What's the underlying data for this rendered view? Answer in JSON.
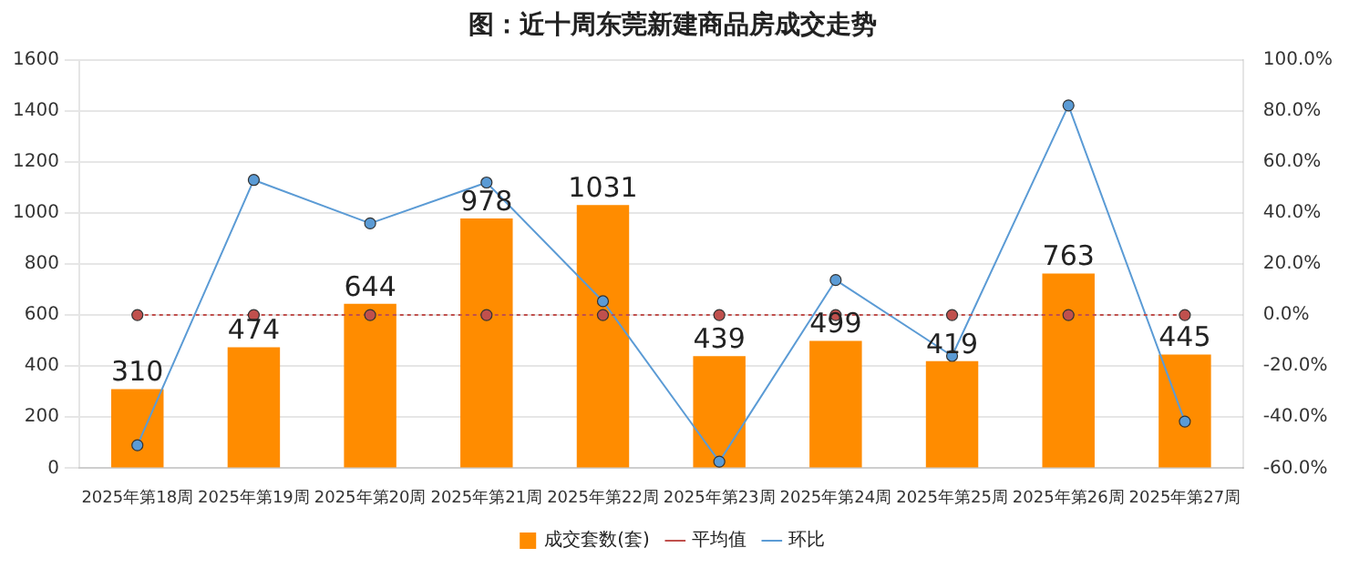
{
  "chart_data": {
    "type": "bar",
    "title": "图：近十周东莞新建商品房成交走势",
    "categories": [
      "2025年第18周",
      "2025年第19周",
      "2025年第20周",
      "2025年第21周",
      "2025年第22周",
      "2025年第23周",
      "2025年第24周",
      "2025年第25周",
      "2025年第26周",
      "2025年第27周"
    ],
    "series": [
      {
        "name": "成交套数(套)",
        "color": "#ff8c00",
        "values": [
          310,
          474,
          644,
          978,
          1031,
          439,
          499,
          419,
          763,
          445
        ],
        "value_labels": [
          "310",
          "474",
          "644",
          "978",
          "1031",
          "439",
          "499",
          "419",
          "763",
          "445"
        ]
      },
      {
        "name": "平均值",
        "type": "line",
        "color": "#c0504d",
        "line_style": "dotted",
        "values": [
          600,
          600,
          600,
          600,
          600,
          600,
          600,
          600,
          600,
          600
        ]
      },
      {
        "name": "环比",
        "type": "line",
        "axis": "y2",
        "color": "#5b9bd5",
        "line_style": "solid",
        "values": [
          -51,
          52.9,
          35.9,
          51.9,
          5.4,
          -57.4,
          13.7,
          -16.0,
          82.1,
          -41.7
        ]
      }
    ],
    "ylim": [
      0,
      1600
    ],
    "yticks": [
      0,
      200,
      400,
      600,
      800,
      1000,
      1200,
      1400,
      1600
    ],
    "y2lim": [
      -60,
      100
    ],
    "y2ticks": [
      {
        "value": -60,
        "label": "-60.0%"
      },
      {
        "value": -40,
        "label": "-40.0%"
      },
      {
        "value": -20,
        "label": "-20.0%"
      },
      {
        "value": 0,
        "label": "0.0%"
      },
      {
        "value": 20,
        "label": "20.0%"
      },
      {
        "value": 40,
        "label": "40.0%"
      },
      {
        "value": 60,
        "label": "60.0%"
      },
      {
        "value": 80,
        "label": "80.0%"
      },
      {
        "value": 100,
        "label": "100.0%"
      }
    ],
    "grid": "y",
    "legend": "bottom",
    "marker": "circle"
  }
}
